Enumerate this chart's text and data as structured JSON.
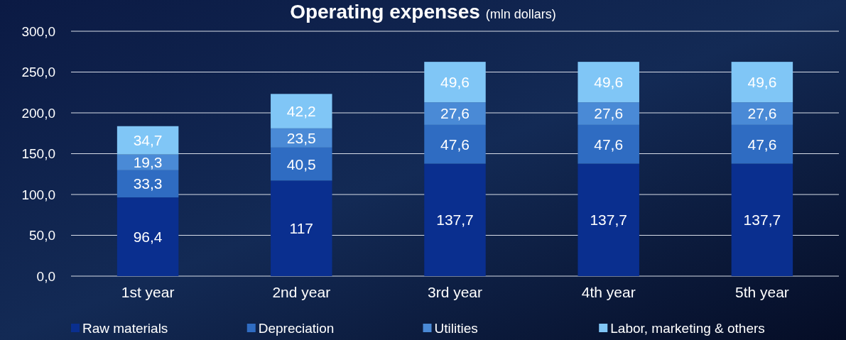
{
  "chart_data": {
    "type": "bar",
    "title": "Operating expenses",
    "subtitle": "(mln dollars)",
    "stacked": true,
    "grid": "y",
    "legend": "bottom",
    "categories": [
      "1st year",
      "2nd year",
      "3rd year",
      "4th year",
      "5th year"
    ],
    "ylim": [
      0,
      300
    ],
    "yticks": [
      {
        "value": 0,
        "label": "0,0"
      },
      {
        "value": 50,
        "label": "50,0"
      },
      {
        "value": 100,
        "label": "100,0"
      },
      {
        "value": 150,
        "label": "150,0"
      },
      {
        "value": 200,
        "label": "200,0"
      },
      {
        "value": 250,
        "label": "250,0"
      },
      {
        "value": 300,
        "label": "300,0"
      }
    ],
    "series": [
      {
        "name": "Raw materials",
        "color": "#0a2f8f",
        "values": [
          96.4,
          117,
          137.7,
          137.7,
          137.7
        ],
        "value_labels": [
          "96,4",
          "117",
          "137,7",
          "137,7",
          "137,7"
        ]
      },
      {
        "name": "Depreciation",
        "color": "#2f6cc2",
        "values": [
          33.3,
          40.5,
          47.6,
          47.6,
          47.6
        ],
        "value_labels": [
          "33,3",
          "40,5",
          "47,6",
          "47,6",
          "47,6"
        ]
      },
      {
        "name": "Utilities",
        "color": "#4a8ad6",
        "values": [
          19.3,
          23.5,
          27.6,
          27.6,
          27.6
        ],
        "value_labels": [
          "19,3",
          "23,5",
          "27,6",
          "27,6",
          "27,6"
        ]
      },
      {
        "name": "Labor, marketing & others",
        "color": "#80c6f6",
        "values": [
          34.7,
          42.2,
          49.6,
          49.6,
          49.6
        ],
        "value_labels": [
          "34,7",
          "42,2",
          "49,6",
          "49,6",
          "49,6"
        ]
      }
    ]
  }
}
